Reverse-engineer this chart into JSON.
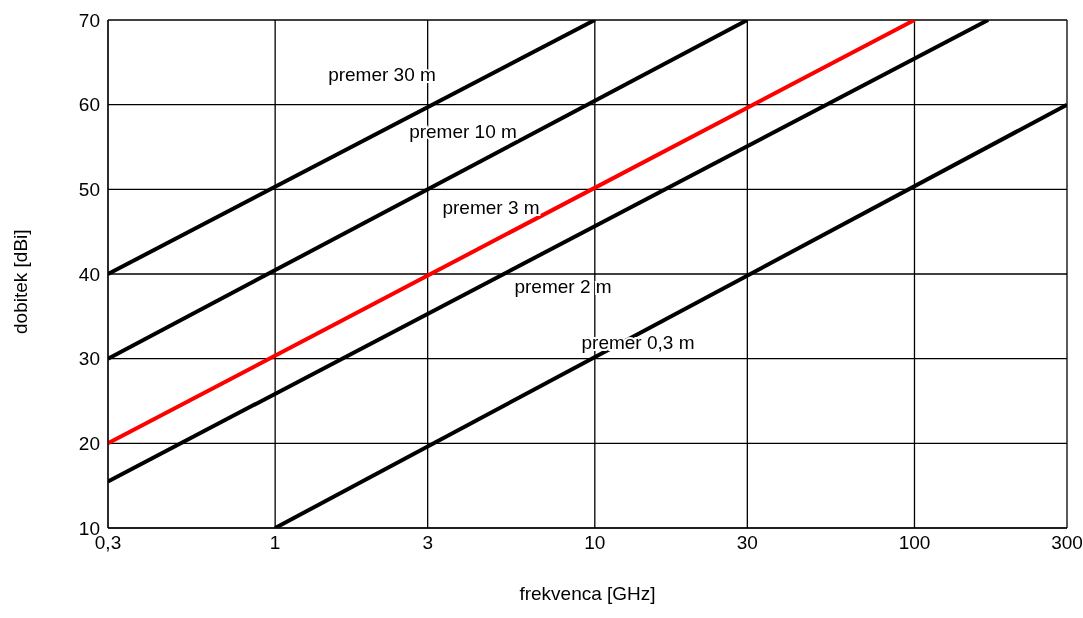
{
  "chart_data": {
    "type": "line",
    "xlabel": "frekvenca [GHz]",
    "ylabel": "dobitek [dBi]",
    "log": "x",
    "xlim": [
      0.3,
      300
    ],
    "xticks": [
      {
        "value": 0.3,
        "label": "0,3"
      },
      1,
      3,
      10,
      30,
      100,
      300
    ],
    "ylim": [
      10,
      70
    ],
    "yticks": [
      10,
      20,
      30,
      40,
      50,
      60,
      70
    ],
    "grid": true,
    "legend": false,
    "marker": "none",
    "line_style": "solid",
    "series": [
      {
        "color": "#000000",
        "x": [
          0.3,
          10
        ],
        "values": [
          40,
          70
        ]
      },
      {
        "color": "#000000",
        "x": [
          0.3,
          30
        ],
        "values": [
          30,
          70
        ]
      },
      {
        "color": "#ff0000",
        "x": [
          0.3,
          100
        ],
        "values": [
          20,
          70
        ]
      },
      {
        "color": "#000000",
        "x": [
          0.3,
          170
        ],
        "values": [
          15.5,
          70
        ]
      },
      {
        "color": "#000000",
        "x": [
          1,
          300
        ],
        "values": [
          10,
          60
        ]
      }
    ],
    "annotations": [
      "premer 30 m",
      "premer 10 m",
      "premer 3 m",
      "premer 2 m",
      "premer 0,3 m"
    ]
  }
}
